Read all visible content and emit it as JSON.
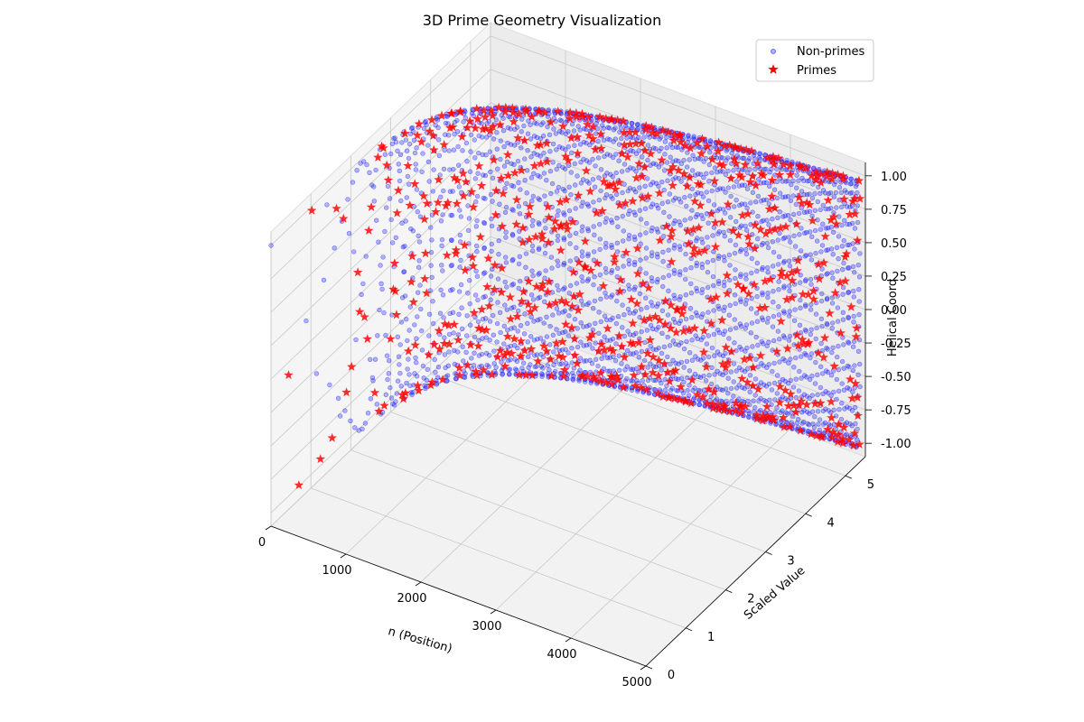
{
  "chart_data": {
    "type": "scatter",
    "title": "3D Prime Geometry Visualization",
    "xlabel": "n (Position)",
    "ylabel": "Scaled Value",
    "zlabel": "Helical Coord",
    "xlim": [
      0,
      5000
    ],
    "ylim": [
      0,
      5.5
    ],
    "zlim": [
      -1.1,
      1.1
    ],
    "x_ticks": [
      "0",
      "1000",
      "2000",
      "3000",
      "4000",
      "5000"
    ],
    "y_ticks": [
      "0",
      "1",
      "2",
      "3",
      "4",
      "5"
    ],
    "z_ticks": [
      "-1.00",
      "-0.75",
      "-0.50",
      "-0.25",
      "0.00",
      "0.25",
      "0.50",
      "0.75",
      "1.00"
    ],
    "grid": true,
    "legend_position": "top-right",
    "series": [
      {
        "name": "Non-primes",
        "marker": "circle",
        "color": "#0000ff",
        "opacity": 0.3,
        "n_range": [
          1,
          5000
        ],
        "scaled_value": "ln(n)*0.63",
        "helical_coord": "sin(phi*n)"
      },
      {
        "name": "Primes",
        "marker": "star",
        "color": "#ff0000",
        "opacity": 0.85,
        "n_range": [
          2,
          5000
        ],
        "scaled_value": "ln(n)*0.63",
        "helical_coord": "sin(phi*n)"
      }
    ]
  }
}
